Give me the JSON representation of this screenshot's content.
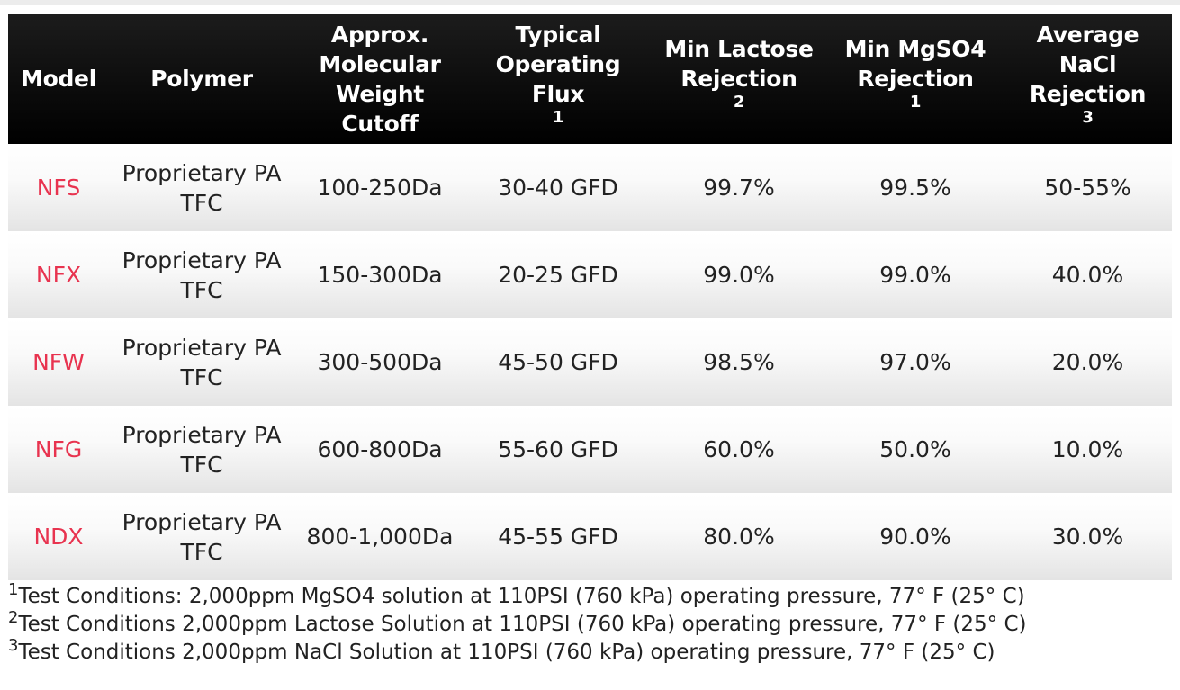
{
  "table": {
    "headers": {
      "model": "Model",
      "polymer": "Polymer",
      "mwco": [
        "Approx.",
        "Molecular",
        "Weight",
        "Cutoff"
      ],
      "flux": [
        "Typical",
        "Operating",
        "Flux"
      ],
      "flux_sup": "1",
      "lactose": [
        "Min Lactose",
        "Rejection"
      ],
      "lactose_sup": "2",
      "mgso4": [
        "Min MgSO4",
        "Rejection"
      ],
      "mgso4_sup": "1",
      "nacl": [
        "Average",
        "NaCl",
        "Rejection"
      ],
      "nacl_sup": "3"
    },
    "rows": [
      {
        "model": "NFS",
        "polymer": [
          "Proprietary PA",
          "TFC"
        ],
        "mwco": "100-250Da",
        "flux": "30-40 GFD",
        "lactose": "99.7%",
        "mgso4": "99.5%",
        "nacl": "50-55%"
      },
      {
        "model": "NFX",
        "polymer": [
          "Proprietary PA",
          "TFC"
        ],
        "mwco": "150-300Da",
        "flux": "20-25 GFD",
        "lactose": "99.0%",
        "mgso4": "99.0%",
        "nacl": "40.0%"
      },
      {
        "model": "NFW",
        "polymer": [
          "Proprietary PA",
          "TFC"
        ],
        "mwco": "300-500Da",
        "flux": "45-50 GFD",
        "lactose": "98.5%",
        "mgso4": "97.0%",
        "nacl": "20.0%"
      },
      {
        "model": "NFG",
        "polymer": [
          "Proprietary PA",
          "TFC"
        ],
        "mwco": "600-800Da",
        "flux": "55-60 GFD",
        "lactose": "60.0%",
        "mgso4": "50.0%",
        "nacl": "10.0%"
      },
      {
        "model": "NDX",
        "polymer": [
          "Proprietary PA",
          "TFC"
        ],
        "mwco": "800-1,000Da",
        "flux": "45-55 GFD",
        "lactose": "80.0%",
        "mgso4": "90.0%",
        "nacl": "30.0%"
      }
    ]
  },
  "footnotes": [
    {
      "mark": "1",
      "text": "Test Conditions: 2,000ppm MgSO4 solution at 110PSI (760 kPa) operating pressure, 77° F (25° C)"
    },
    {
      "mark": "2",
      "text": "Test Conditions 2,000ppm Lactose Solution at 110PSI (760 kPa) operating pressure, 77° F (25° C)"
    },
    {
      "mark": "3",
      "text": "Test Conditions 2,000ppm NaCl Solution at 110PSI (760 kPa) operating pressure, 77° F (25° C)"
    }
  ],
  "colors": {
    "header_bg": "#000000",
    "header_text": "#ffffff",
    "model_text": "#e8334f",
    "body_text": "#222222"
  }
}
